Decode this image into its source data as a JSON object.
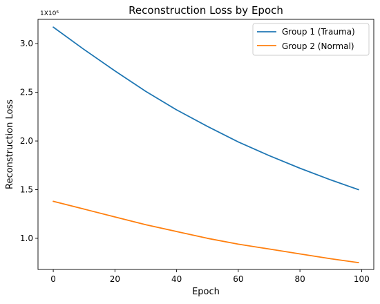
{
  "chart_data": {
    "type": "line",
    "title": "Reconstruction Loss by Epoch",
    "xlabel": "Epoch",
    "ylabel": "Reconstruction Loss",
    "y_offset_label": "1X10⁶",
    "y_multiplier": 1000000,
    "xlim": [
      -4.95,
      103.95
    ],
    "ylim": [
      0.68,
      3.25
    ],
    "x_ticks": [
      0,
      20,
      40,
      60,
      80,
      100
    ],
    "x_tick_labels": [
      "0",
      "20",
      "40",
      "60",
      "80",
      "100"
    ],
    "y_ticks": [
      1.0,
      1.5,
      2.0,
      2.5,
      3.0
    ],
    "y_tick_labels": [
      "1.0",
      "1.5",
      "2.0",
      "2.5",
      "3.0"
    ],
    "grid": false,
    "legend_position": "top-right",
    "x": [
      0,
      10,
      20,
      30,
      40,
      50,
      60,
      70,
      80,
      90,
      99
    ],
    "series": [
      {
        "name": "Group 1 (Trauma)",
        "color": "#1f77b4",
        "values": [
          3.17,
          2.94,
          2.72,
          2.51,
          2.32,
          2.15,
          1.99,
          1.85,
          1.72,
          1.6,
          1.5
        ]
      },
      {
        "name": "Group 2 (Normal)",
        "color": "#ff7f0e",
        "values": [
          1.38,
          1.3,
          1.22,
          1.14,
          1.07,
          1.0,
          0.94,
          0.89,
          0.84,
          0.79,
          0.75
        ]
      }
    ]
  }
}
